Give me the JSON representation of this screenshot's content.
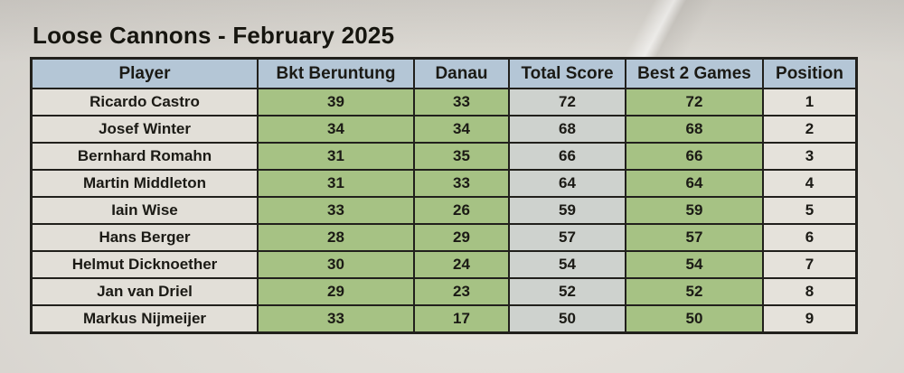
{
  "title": "Loose Cannons - February 2025",
  "table": {
    "columns": [
      {
        "key": "player",
        "label": "Player"
      },
      {
        "key": "bkt",
        "label": "Bkt Beruntung"
      },
      {
        "key": "danau",
        "label": "Danau"
      },
      {
        "key": "total",
        "label": "Total Score"
      },
      {
        "key": "best2",
        "label": "Best 2 Games"
      },
      {
        "key": "position",
        "label": "Position"
      }
    ],
    "rows": [
      {
        "player": "Ricardo Castro",
        "bkt": 39,
        "danau": 33,
        "total": 72,
        "best2": 72,
        "position": 1
      },
      {
        "player": "Josef Winter",
        "bkt": 34,
        "danau": 34,
        "total": 68,
        "best2": 68,
        "position": 2
      },
      {
        "player": "Bernhard Romahn",
        "bkt": 31,
        "danau": 35,
        "total": 66,
        "best2": 66,
        "position": 3
      },
      {
        "player": "Martin Middleton",
        "bkt": 31,
        "danau": 33,
        "total": 64,
        "best2": 64,
        "position": 4
      },
      {
        "player": "Iain Wise",
        "bkt": 33,
        "danau": 26,
        "total": 59,
        "best2": 59,
        "position": 5
      },
      {
        "player": "Hans Berger",
        "bkt": 28,
        "danau": 29,
        "total": 57,
        "best2": 57,
        "position": 6
      },
      {
        "player": "Helmut Dicknoether",
        "bkt": 30,
        "danau": 24,
        "total": 54,
        "best2": 54,
        "position": 7
      },
      {
        "player": "Jan van Driel",
        "bkt": 29,
        "danau": 23,
        "total": 52,
        "best2": 52,
        "position": 8
      },
      {
        "player": "Markus Nijmeijer",
        "bkt": 33,
        "danau": 17,
        "total": 50,
        "best2": 50,
        "position": 9
      }
    ]
  },
  "colors": {
    "header_fill": "#b4c6d6",
    "green_cell": "#a6c284",
    "gray_cell": "#ced2ce",
    "player_cell": "#e2dfd8",
    "position_cell": "#e5e2db",
    "border": "#21201c",
    "paper": "#dedbd5"
  },
  "chart_data": {
    "type": "table",
    "title": "Loose Cannons - February 2025",
    "columns": [
      "Player",
      "Bkt Beruntung",
      "Danau",
      "Total Score",
      "Best 2 Games",
      "Position"
    ],
    "rows": [
      [
        "Ricardo Castro",
        39,
        33,
        72,
        72,
        1
      ],
      [
        "Josef Winter",
        34,
        34,
        68,
        68,
        2
      ],
      [
        "Bernhard Romahn",
        31,
        35,
        66,
        66,
        3
      ],
      [
        "Martin Middleton",
        31,
        33,
        64,
        64,
        4
      ],
      [
        "Iain Wise",
        33,
        26,
        59,
        59,
        5
      ],
      [
        "Hans Berger",
        28,
        29,
        57,
        57,
        6
      ],
      [
        "Helmut Dicknoether",
        30,
        24,
        54,
        54,
        7
      ],
      [
        "Jan van Driel",
        29,
        23,
        52,
        52,
        8
      ],
      [
        "Markus Nijmeijer",
        33,
        17,
        50,
        50,
        9
      ]
    ]
  }
}
